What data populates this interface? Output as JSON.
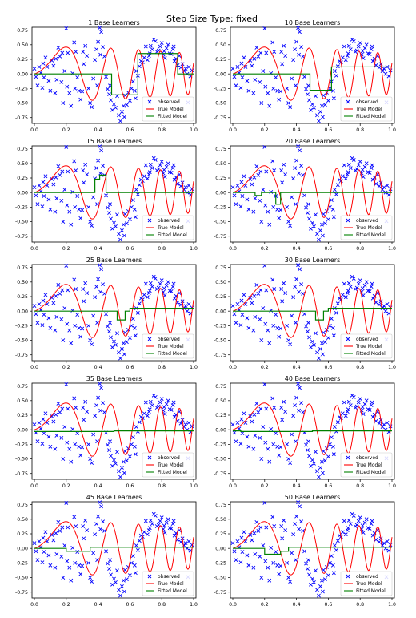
{
  "figure": {
    "title": "Step Size Type: fixed"
  },
  "chart_data": {
    "type": "scatter",
    "suptitle": "Step Size Type: fixed",
    "xlim": [
      0.0,
      1.0
    ],
    "ylim": [
      -0.85,
      0.8
    ],
    "x_ticks": [
      "0.0",
      "0.2",
      "0.4",
      "0.6",
      "0.8",
      "1.0"
    ],
    "y_ticks": [
      "0.75",
      "0.50",
      "0.25",
      "0.00",
      "-0.25",
      "-0.50",
      "-0.75"
    ],
    "legend": {
      "position": "lower-right",
      "entries": [
        "observed",
        "True Model",
        "Fitted Model"
      ]
    },
    "colors": {
      "observed": "#0000ff",
      "true_model": "#ff0000",
      "fitted_model": "#008000"
    },
    "observed_points": [
      [
        0.0,
        0.09
      ],
      [
        0.01,
        -0.05
      ],
      [
        0.02,
        -0.2
      ],
      [
        0.03,
        0.12
      ],
      [
        0.04,
        0.02
      ],
      [
        0.05,
        -0.24
      ],
      [
        0.06,
        -0.06
      ],
      [
        0.07,
        0.28
      ],
      [
        0.08,
        0.12
      ],
      [
        0.09,
        -0.12
      ],
      [
        0.1,
        -0.29
      ],
      [
        0.11,
        0.23
      ],
      [
        0.12,
        0.14
      ],
      [
        0.13,
        -0.33
      ],
      [
        0.14,
        -0.1
      ],
      [
        0.15,
        0.45
      ],
      [
        0.16,
        0.3
      ],
      [
        0.17,
        -0.14
      ],
      [
        0.18,
        -0.5
      ],
      [
        0.19,
        0.05
      ],
      [
        0.2,
        0.78
      ],
      [
        0.21,
        0.36
      ],
      [
        0.22,
        -0.33
      ],
      [
        0.23,
        -0.55
      ],
      [
        0.24,
        0.01
      ],
      [
        0.25,
        0.54
      ],
      [
        0.26,
        0.38
      ],
      [
        0.27,
        -0.06
      ],
      [
        0.28,
        -0.29
      ],
      [
        0.29,
        -0.44
      ],
      [
        0.3,
        -0.3
      ],
      [
        0.31,
        0.17
      ],
      [
        0.32,
        0.48
      ],
      [
        0.33,
        0.31
      ],
      [
        0.34,
        -0.25
      ],
      [
        0.35,
        -0.5
      ],
      [
        0.36,
        -0.57
      ],
      [
        0.37,
        -0.08
      ],
      [
        0.38,
        0.24
      ],
      [
        0.39,
        0.42
      ],
      [
        0.4,
        0.55
      ],
      [
        0.41,
        0.79
      ],
      [
        0.42,
        0.72
      ],
      [
        0.43,
        0.46
      ],
      [
        0.44,
        0.3
      ],
      [
        0.45,
        -0.05
      ],
      [
        0.46,
        -0.26
      ],
      [
        0.47,
        -0.35
      ],
      [
        0.48,
        -0.45
      ],
      [
        0.49,
        -0.62
      ],
      [
        0.5,
        -0.52
      ],
      [
        0.51,
        -0.58
      ],
      [
        0.52,
        -0.38
      ],
      [
        0.53,
        -0.71
      ],
      [
        0.54,
        -0.81
      ],
      [
        0.55,
        -0.65
      ],
      [
        0.56,
        -0.55
      ],
      [
        0.57,
        -0.37
      ],
      [
        0.58,
        -0.53
      ],
      [
        0.59,
        -0.32
      ],
      [
        0.6,
        -0.46
      ],
      [
        0.61,
        -0.25
      ],
      [
        0.62,
        -0.13
      ],
      [
        0.63,
        -0.29
      ],
      [
        0.64,
        0.05
      ],
      [
        0.65,
        -0.03
      ],
      [
        0.66,
        0.13
      ],
      [
        0.67,
        0.22
      ],
      [
        0.68,
        0.2
      ],
      [
        0.69,
        0.28
      ],
      [
        0.7,
        0.47
      ],
      [
        0.71,
        0.24
      ],
      [
        0.72,
        0.31
      ],
      [
        0.73,
        0.48
      ],
      [
        0.74,
        0.42
      ],
      [
        0.75,
        0.59
      ],
      [
        0.76,
        0.56
      ],
      [
        0.77,
        0.38
      ],
      [
        0.78,
        0.4
      ],
      [
        0.79,
        0.47
      ],
      [
        0.8,
        0.53
      ],
      [
        0.81,
        0.33
      ],
      [
        0.82,
        0.27
      ],
      [
        0.83,
        0.44
      ],
      [
        0.84,
        0.5
      ],
      [
        0.85,
        0.35
      ],
      [
        0.86,
        0.34
      ],
      [
        0.87,
        0.42
      ],
      [
        0.88,
        0.22
      ],
      [
        0.89,
        0.26
      ],
      [
        0.9,
        0.15
      ],
      [
        0.91,
        0.31
      ],
      [
        0.92,
        0.11
      ],
      [
        0.93,
        0.17
      ],
      [
        0.94,
        0.05
      ],
      [
        0.95,
        0.09
      ],
      [
        0.96,
        0.0
      ],
      [
        0.97,
        0.12
      ],
      [
        0.98,
        -0.04
      ],
      [
        0.99,
        0.06
      ],
      [
        0.055,
        0.18
      ],
      [
        0.135,
        0.26
      ],
      [
        0.175,
        0.36
      ],
      [
        0.205,
        -0.22
      ],
      [
        0.255,
        -0.25
      ],
      [
        0.305,
        0.38
      ],
      [
        0.395,
        -0.2
      ],
      [
        0.415,
        0.33
      ],
      [
        0.475,
        -0.2
      ],
      [
        0.565,
        -0.74
      ],
      [
        0.635,
        -0.42
      ],
      [
        0.725,
        0.35
      ],
      [
        0.815,
        0.39
      ],
      [
        0.875,
        0.47
      ],
      [
        0.965,
        -0.49
      ]
    ],
    "panels": [
      {
        "title": "1 Base Learners",
        "fitted": {
          "x": [
            0.0,
            0.485,
            0.485,
            0.65,
            0.65,
            0.9,
            0.9,
            1.0
          ],
          "y": [
            0.0,
            0.0,
            -0.36,
            -0.36,
            0.35,
            0.35,
            0.0,
            0.0
          ]
        }
      },
      {
        "title": "10 Base Learners",
        "fitted": {
          "x": [
            0.0,
            0.485,
            0.485,
            0.62,
            0.62,
            1.0
          ],
          "y": [
            0.0,
            0.0,
            -0.28,
            -0.28,
            0.12,
            0.12
          ]
        }
      },
      {
        "title": "15 Base Learners",
        "fitted": {
          "x": [
            0.0,
            0.38,
            0.38,
            0.41,
            0.41,
            0.45,
            0.45,
            1.0
          ],
          "y": [
            0.0,
            0.0,
            0.23,
            0.23,
            0.3,
            0.3,
            0.0,
            0.0
          ]
        }
      },
      {
        "title": "20 Base Learners",
        "fitted": {
          "x": [
            0.0,
            0.14,
            0.14,
            0.18,
            0.18,
            0.27,
            0.27,
            0.3,
            0.3,
            1.0
          ],
          "y": [
            0.0,
            0.0,
            -0.05,
            -0.05,
            0.0,
            0.0,
            -0.2,
            -0.2,
            0.0,
            0.0
          ]
        }
      },
      {
        "title": "25 Base Learners",
        "fitted": {
          "x": [
            0.0,
            0.52,
            0.52,
            0.57,
            0.57,
            0.6,
            0.6,
            1.0
          ],
          "y": [
            0.0,
            0.0,
            -0.15,
            -0.15,
            0.0,
            0.0,
            0.05,
            0.05
          ]
        }
      },
      {
        "title": "30 Base Learners",
        "fitted": {
          "x": [
            0.0,
            0.52,
            0.52,
            0.57,
            0.57,
            0.6,
            0.6,
            1.0
          ],
          "y": [
            0.0,
            0.0,
            -0.15,
            -0.15,
            0.0,
            0.0,
            0.05,
            0.05
          ]
        }
      },
      {
        "title": "35 Base Learners",
        "fitted": {
          "x": [
            0.0,
            0.5,
            0.5,
            1.0
          ],
          "y": [
            -0.03,
            -0.03,
            -0.02,
            -0.02
          ]
        }
      },
      {
        "title": "40 Base Learners",
        "fitted": {
          "x": [
            0.0,
            0.05,
            0.05,
            0.5,
            0.5,
            1.0
          ],
          "y": [
            -0.02,
            -0.02,
            -0.03,
            -0.03,
            -0.02,
            -0.02
          ]
        }
      },
      {
        "title": "45 Base Learners",
        "fitted": {
          "x": [
            0.0,
            0.2,
            0.2,
            0.35,
            0.35,
            1.0
          ],
          "y": [
            0.0,
            0.0,
            -0.05,
            -0.05,
            0.02,
            0.02
          ]
        }
      },
      {
        "title": "50 Base Learners",
        "fitted": {
          "x": [
            0.0,
            0.2,
            0.2,
            0.3,
            0.3,
            0.35,
            0.35,
            1.0
          ],
          "y": [
            0.0,
            0.0,
            -0.1,
            -0.1,
            -0.05,
            -0.05,
            0.02,
            0.02
          ]
        }
      }
    ]
  }
}
